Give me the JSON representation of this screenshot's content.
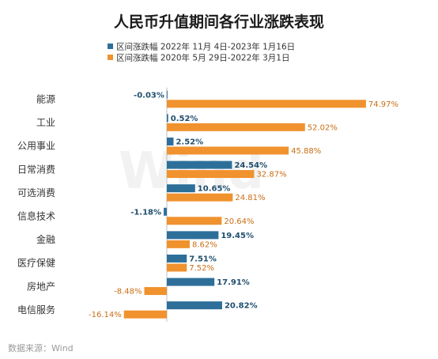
{
  "chart_data": {
    "type": "bar",
    "orientation": "horizontal",
    "title": "人民币升值期间各行业涨跌表现",
    "categories": [
      "能源",
      "工业",
      "公用事业",
      "日常消费",
      "可选消费",
      "信息技术",
      "金融",
      "医疗保健",
      "房地产",
      "电信服务"
    ],
    "series": [
      {
        "name": "区间涨跌幅 2022年 11月 4日-2023年 1月16日",
        "color": "#2e6f9a",
        "values": [
          -0.03,
          0.52,
          2.52,
          24.54,
          10.65,
          -1.18,
          19.45,
          7.51,
          17.91,
          20.82
        ],
        "labels": [
          "-0.03%",
          "0.52%",
          "2.52%",
          "24.54%",
          "10.65%",
          "-1.18%",
          "19.45%",
          "7.51%",
          "17.91%",
          "20.82%"
        ]
      },
      {
        "name": "区间涨跌幅 2020年 5月 29日-2022年 3月1日",
        "color": "#f0922e",
        "values": [
          74.97,
          52.02,
          45.88,
          32.87,
          24.81,
          20.64,
          8.62,
          7.52,
          -8.48,
          -16.14
        ],
        "labels": [
          "74.97%",
          "52.02%",
          "45.88%",
          "32.87%",
          "24.81%",
          "20.64%",
          "8.62%",
          "7.52%",
          "-8.48%",
          "-16.14%"
        ]
      }
    ],
    "xlim": [
      -20,
      80
    ],
    "grid": false,
    "legend_position": "top"
  },
  "watermark": "Wind",
  "source": "数据来源：Wind"
}
